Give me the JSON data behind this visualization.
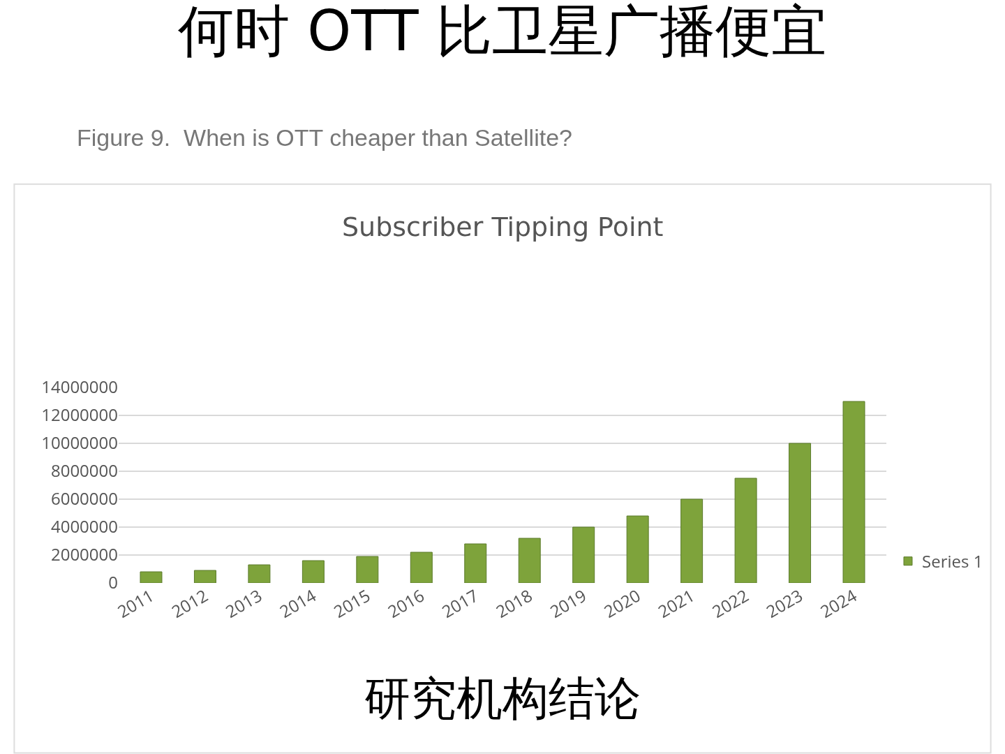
{
  "chart_data": {
    "type": "bar",
    "title": "何时 OTT 比卫星广播便宜",
    "subtitle": "Figure 9.  When is OTT cheaper than Satellite?",
    "annotations": [
      "Subscriber Tipping Point",
      "研究机构结论"
    ],
    "categories": [
      "2011",
      "2012",
      "2013",
      "2014",
      "2015",
      "2016",
      "2017",
      "2018",
      "2019",
      "2020",
      "2021",
      "2022",
      "2023",
      "2024"
    ],
    "series": [
      {
        "name": "Series 1",
        "color": "#7ea33b",
        "values": [
          800000,
          900000,
          1300000,
          1600000,
          1900000,
          2200000,
          2800000,
          3200000,
          4000000,
          4800000,
          6000000,
          7500000,
          10000000,
          13000000
        ]
      }
    ],
    "ylim": [
      0,
      14000000
    ],
    "yticks": [
      0,
      2000000,
      4000000,
      6000000,
      8000000,
      10000000,
      12000000,
      14000000
    ],
    "grid": "y",
    "legend": "right"
  }
}
